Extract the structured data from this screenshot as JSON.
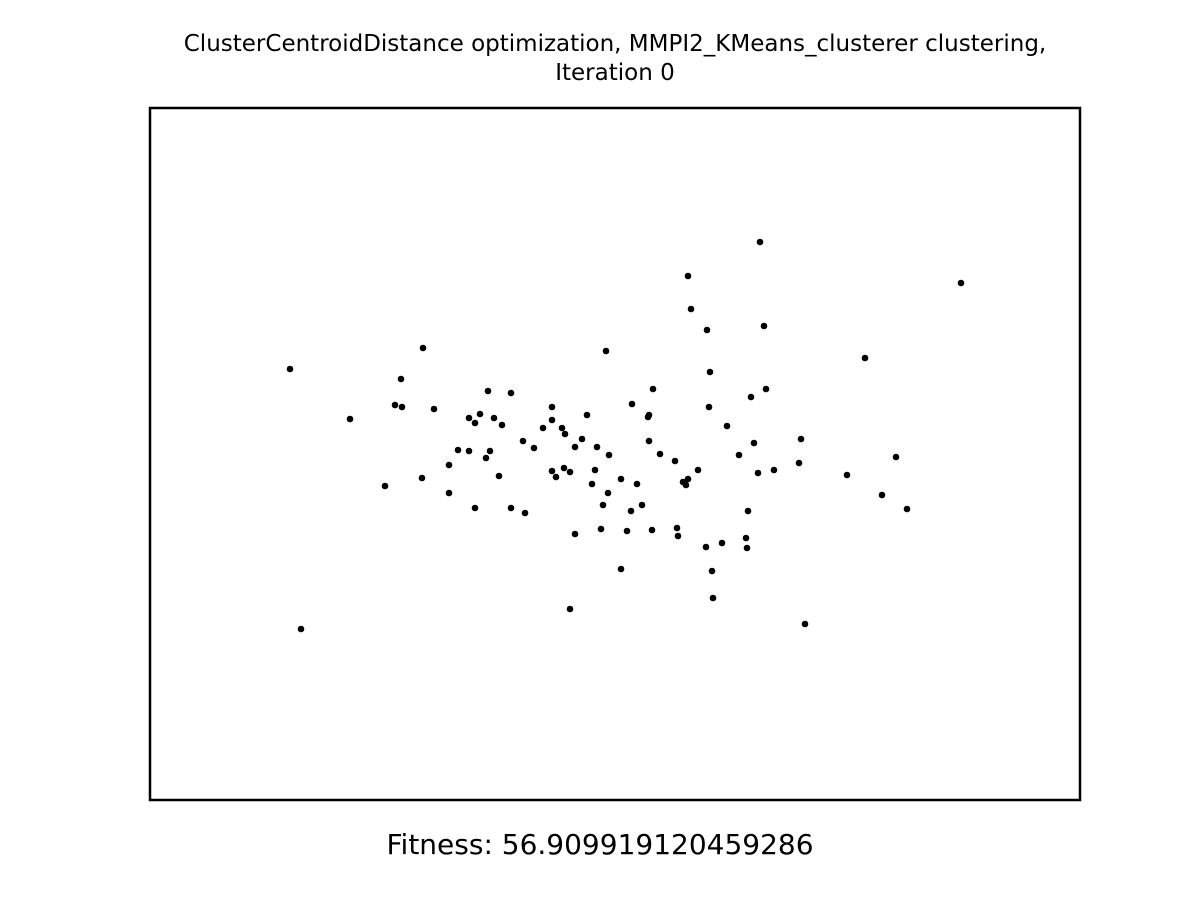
{
  "chart_data": {
    "type": "scatter",
    "title_line1": "ClusterCentroidDistance optimization, MMPI2_KMeans_clusterer clustering,",
    "title_line2": "Iteration 0",
    "xlabel": "",
    "ylabel": "",
    "xlim": [
      150,
      1080
    ],
    "ylim": [
      800,
      108
    ],
    "axes_visible": false,
    "grid": false,
    "marker_color": "#000000",
    "points": [
      [
        760,
        242
      ],
      [
        688,
        276
      ],
      [
        961,
        283
      ],
      [
        691,
        309
      ],
      [
        707,
        330
      ],
      [
        764,
        326
      ],
      [
        606,
        351
      ],
      [
        423,
        348
      ],
      [
        290,
        369
      ],
      [
        865,
        358
      ],
      [
        710,
        372
      ],
      [
        401,
        379
      ],
      [
        653,
        389
      ],
      [
        766,
        389
      ],
      [
        488,
        391
      ],
      [
        511,
        393
      ],
      [
        751,
        397
      ],
      [
        395,
        405
      ],
      [
        402,
        407
      ],
      [
        434,
        409
      ],
      [
        552,
        407
      ],
      [
        632,
        404
      ],
      [
        709,
        407
      ],
      [
        587,
        415
      ],
      [
        350,
        419
      ],
      [
        469,
        418
      ],
      [
        480,
        414
      ],
      [
        494,
        418
      ],
      [
        475,
        423
      ],
      [
        502,
        425
      ],
      [
        552,
        420
      ],
      [
        562,
        428
      ],
      [
        543,
        428
      ],
      [
        649,
        415
      ],
      [
        648,
        417
      ],
      [
        727,
        426
      ],
      [
        565,
        434
      ],
      [
        582,
        439
      ],
      [
        523,
        441
      ],
      [
        649,
        441
      ],
      [
        801,
        439
      ],
      [
        754,
        443
      ],
      [
        458,
        450
      ],
      [
        469,
        451
      ],
      [
        490,
        451
      ],
      [
        534,
        448
      ],
      [
        575,
        447
      ],
      [
        597,
        447
      ],
      [
        609,
        455
      ],
      [
        660,
        454
      ],
      [
        739,
        455
      ],
      [
        896,
        457
      ],
      [
        486,
        458
      ],
      [
        675,
        461
      ],
      [
        449,
        465
      ],
      [
        564,
        468
      ],
      [
        552,
        471
      ],
      [
        570,
        472
      ],
      [
        595,
        470
      ],
      [
        698,
        470
      ],
      [
        774,
        470
      ],
      [
        799,
        463
      ],
      [
        758,
        473
      ],
      [
        499,
        476
      ],
      [
        556,
        477
      ],
      [
        422,
        478
      ],
      [
        621,
        479
      ],
      [
        688,
        479
      ],
      [
        683,
        482
      ],
      [
        592,
        484
      ],
      [
        637,
        484
      ],
      [
        686,
        485
      ],
      [
        847,
        475
      ],
      [
        385,
        486
      ],
      [
        449,
        493
      ],
      [
        608,
        493
      ],
      [
        882,
        495
      ],
      [
        603,
        505
      ],
      [
        642,
        505
      ],
      [
        475,
        508
      ],
      [
        511,
        508
      ],
      [
        525,
        513
      ],
      [
        631,
        511
      ],
      [
        748,
        511
      ],
      [
        907,
        509
      ],
      [
        601,
        529
      ],
      [
        627,
        531
      ],
      [
        652,
        530
      ],
      [
        677,
        528
      ],
      [
        575,
        534
      ],
      [
        678,
        536
      ],
      [
        746,
        538
      ],
      [
        722,
        543
      ],
      [
        706,
        547
      ],
      [
        747,
        548
      ],
      [
        621,
        569
      ],
      [
        712,
        571
      ],
      [
        713,
        598
      ],
      [
        570,
        609
      ],
      [
        805,
        624
      ],
      [
        301,
        629
      ]
    ]
  },
  "fitness_text": "Fitness: 56.909919120459286"
}
